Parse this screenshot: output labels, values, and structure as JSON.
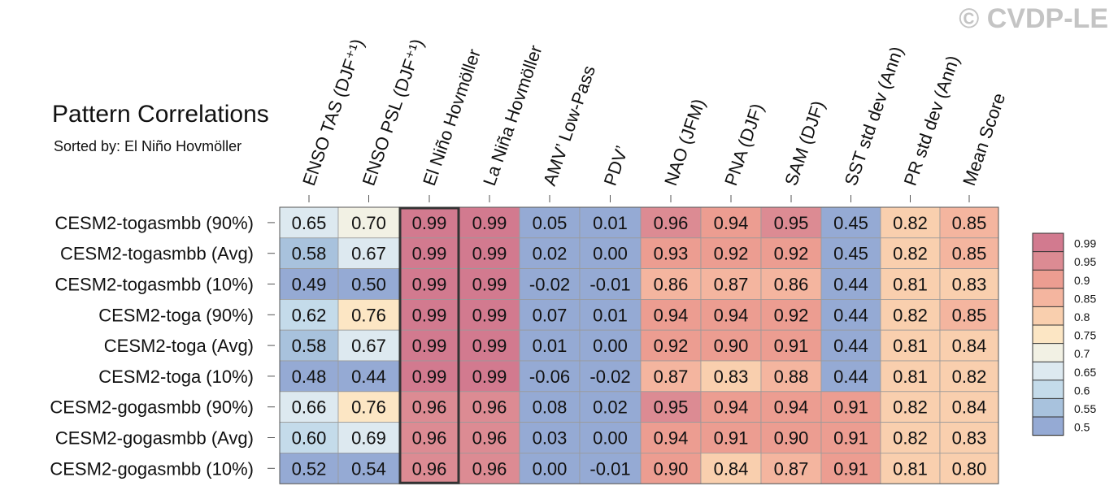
{
  "title": "Pattern Correlations",
  "subtitle": "Sorted by: El Niño Hovmöller",
  "watermark": "© CVDP-LE",
  "chart_data": {
    "type": "heatmap",
    "columns": [
      "ENSO TAS (DJF⁺¹)",
      "ENSO PSL (DJF⁺¹)",
      "El Niño Hovmöller",
      "La Niña Hovmöller",
      "AMV’ Low-Pass",
      "PDV’",
      "NAO (JFM)",
      "PNA (DJF)",
      "SAM (DJF)",
      "SST std dev (Ann)",
      "PR std dev (Ann)",
      "Mean Score"
    ],
    "rows": [
      "CESM2-togasmbb (90%)",
      "CESM2-togasmbb (Avg)",
      "CESM2-togasmbb (10%)",
      "CESM2-toga (90%)",
      "CESM2-toga (Avg)",
      "CESM2-toga (10%)",
      "CESM2-gogasmbb (90%)",
      "CESM2-gogasmbb (Avg)",
      "CESM2-gogasmbb (10%)"
    ],
    "values": [
      [
        "0.65",
        "0.70",
        "0.99",
        "0.99",
        "0.05",
        "0.01",
        "0.96",
        "0.94",
        "0.95",
        "0.45",
        "0.82",
        "0.85"
      ],
      [
        "0.58",
        "0.67",
        "0.99",
        "0.99",
        "0.02",
        "0.00",
        "0.93",
        "0.92",
        "0.92",
        "0.45",
        "0.82",
        "0.85"
      ],
      [
        "0.49",
        "0.50",
        "0.99",
        "0.99",
        "-0.02",
        "-0.01",
        "0.86",
        "0.87",
        "0.86",
        "0.44",
        "0.81",
        "0.83"
      ],
      [
        "0.62",
        "0.76",
        "0.99",
        "0.99",
        "0.07",
        "0.01",
        "0.94",
        "0.94",
        "0.92",
        "0.44",
        "0.82",
        "0.85"
      ],
      [
        "0.58",
        "0.67",
        "0.99",
        "0.99",
        "0.01",
        "0.00",
        "0.92",
        "0.90",
        "0.91",
        "0.44",
        "0.81",
        "0.84"
      ],
      [
        "0.48",
        "0.44",
        "0.99",
        "0.99",
        "-0.06",
        "-0.02",
        "0.87",
        "0.83",
        "0.88",
        "0.44",
        "0.81",
        "0.82"
      ],
      [
        "0.66",
        "0.76",
        "0.96",
        "0.96",
        "0.08",
        "0.02",
        "0.95",
        "0.94",
        "0.94",
        "0.91",
        "0.82",
        "0.84"
      ],
      [
        "0.60",
        "0.69",
        "0.96",
        "0.96",
        "0.03",
        "0.00",
        "0.94",
        "0.91",
        "0.90",
        "0.91",
        "0.82",
        "0.83"
      ],
      [
        "0.52",
        "0.54",
        "0.96",
        "0.96",
        "0.00",
        "-0.01",
        "0.90",
        "0.84",
        "0.87",
        "0.91",
        "0.81",
        "0.80"
      ]
    ],
    "highlighted_column": "El Niño Hovmöller",
    "colorbar": {
      "labels": [
        "0.99",
        "0.95",
        "0.9",
        "0.85",
        "0.8",
        "0.75",
        "0.7",
        "0.65",
        "0.6",
        "0.55",
        "0.5"
      ],
      "colors": [
        "#d27a8f",
        "#dc8b93",
        "#ec9d91",
        "#f4b59f",
        "#f9cfae",
        "#fce6c4",
        "#f2f1e4",
        "#dde9f0",
        "#c4dbea",
        "#a8c2dd",
        "#95aad4"
      ]
    }
  }
}
